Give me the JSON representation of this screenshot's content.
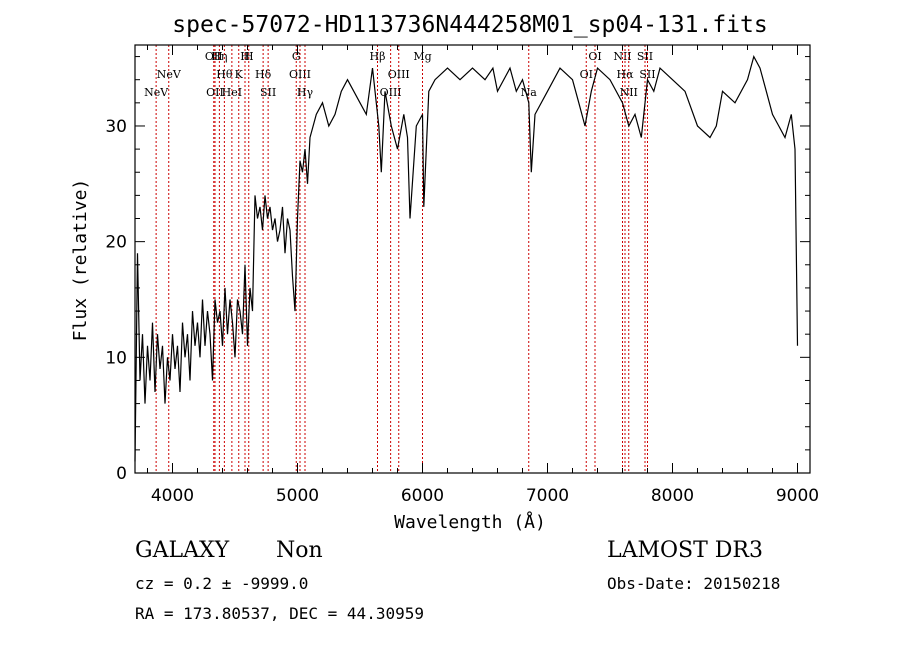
{
  "chart_data": {
    "type": "line",
    "title": "spec-57072-HD113736N444258M01_sp04-131.fits",
    "xlabel": "Wavelength (Å)",
    "ylabel": "Flux (relative)",
    "xlim": [
      3700,
      9100
    ],
    "ylim": [
      0,
      37
    ],
    "xticks": [
      4000,
      5000,
      6000,
      7000,
      8000,
      9000
    ],
    "yticks": [
      0,
      10,
      20,
      30
    ],
    "line_color": "#000000",
    "marker_color": "#cc0000",
    "series": [
      {
        "x": [
          3700,
          3720,
          3740,
          3760,
          3780,
          3800,
          3820,
          3840,
          3860,
          3880,
          3900,
          3920,
          3940,
          3960,
          3980,
          4000,
          4020,
          4040,
          4060,
          4080,
          4100,
          4120,
          4140,
          4160,
          4180,
          4200,
          4220,
          4240,
          4260,
          4280,
          4300,
          4320,
          4340,
          4360,
          4380,
          4400,
          4420,
          4440,
          4460,
          4480,
          4500,
          4520,
          4540,
          4560,
          4580,
          4600,
          4620,
          4640,
          4660,
          4680,
          4700,
          4720,
          4740,
          4760,
          4780,
          4800,
          4820,
          4840,
          4860,
          4880,
          4900,
          4920,
          4940,
          4960,
          4980,
          5000,
          5020,
          5040,
          5060,
          5080,
          5100,
          5150,
          5200,
          5250,
          5300,
          5350,
          5400,
          5450,
          5500,
          5550,
          5600,
          5650,
          5670,
          5700,
          5750,
          5800,
          5850,
          5880,
          5900,
          5950,
          6000,
          6010,
          6050,
          6100,
          6200,
          6300,
          6400,
          6500,
          6563,
          6600,
          6700,
          6750,
          6800,
          6850,
          6870,
          6900,
          7000,
          7100,
          7200,
          7250,
          7300,
          7350,
          7400,
          7500,
          7600,
          7650,
          7700,
          7750,
          7800,
          7850,
          7900,
          8000,
          8100,
          8200,
          8300,
          8350,
          8400,
          8500,
          8600,
          8650,
          8700,
          8750,
          8800,
          8850,
          8900,
          8950,
          8980,
          9000
        ],
        "values": [
          1,
          19,
          8,
          12,
          6,
          11,
          8,
          13,
          7,
          12,
          9,
          11,
          6,
          10,
          8,
          12,
          9,
          11,
          7,
          13,
          10,
          12,
          8,
          14,
          11,
          13,
          10,
          15,
          11,
          14,
          12,
          8,
          15,
          13,
          14,
          11,
          16,
          12,
          15,
          13,
          10,
          15,
          14,
          12,
          18,
          11,
          16,
          14,
          24,
          22,
          23,
          21,
          24,
          22,
          23,
          21,
          22,
          20,
          21,
          23,
          19,
          22,
          21,
          17,
          14,
          22,
          27,
          26,
          28,
          25,
          29,
          31,
          32,
          30,
          31,
          33,
          34,
          33,
          32,
          31,
          35,
          30,
          26,
          33,
          30,
          28,
          31,
          29,
          22,
          30,
          31,
          23,
          33,
          34,
          35,
          34,
          35,
          34,
          35,
          33,
          35,
          33,
          34,
          32,
          26,
          31,
          33,
          35,
          34,
          32,
          30,
          33,
          35,
          34,
          32,
          30,
          31,
          29,
          34,
          33,
          35,
          34,
          33,
          30,
          29,
          30,
          33,
          32,
          34,
          36,
          35,
          33,
          31,
          30,
          29,
          31,
          28,
          11
        ]
      }
    ],
    "lines": [
      {
        "x": 3869,
        "label": "NeV",
        "row": 2
      },
      {
        "x": 3970,
        "label": "NeV",
        "row": 1
      },
      {
        "x": 4330,
        "label": "OII",
        "row": 0
      },
      {
        "x": 4340,
        "label": "OII",
        "row": 2
      },
      {
        "x": 4375,
        "label": "Hη",
        "row": 0
      },
      {
        "x": 4415,
        "label": "Hθ",
        "row": 1
      },
      {
        "x": 4475,
        "label": "HeI",
        "row": 2
      },
      {
        "x": 4530,
        "label": "K",
        "row": 1
      },
      {
        "x": 4580,
        "label": "H",
        "row": 0
      },
      {
        "x": 4610,
        "label": "H",
        "row": 0
      },
      {
        "x": 4725,
        "label": "Hδ",
        "row": 1
      },
      {
        "x": 4765,
        "label": "SII",
        "row": 2
      },
      {
        "x": 4990,
        "label": "G",
        "row": 0
      },
      {
        "x": 5020,
        "label": "OIII",
        "row": 1
      },
      {
        "x": 5060,
        "label": "Hγ",
        "row": 2
      },
      {
        "x": 5640,
        "label": "Hβ",
        "row": 0
      },
      {
        "x": 5745,
        "label": "OIII",
        "row": 2
      },
      {
        "x": 5810,
        "label": "OIII",
        "row": 1
      },
      {
        "x": 6000,
        "label": "Mg",
        "row": 0
      },
      {
        "x": 6850,
        "label": "Na",
        "row": 2
      },
      {
        "x": 7310,
        "label": "OI",
        "row": 1
      },
      {
        "x": 7380,
        "label": "OI",
        "row": 0
      },
      {
        "x": 7600,
        "label": "NII",
        "row": 0
      },
      {
        "x": 7620,
        "label": "Hα",
        "row": 1
      },
      {
        "x": 7650,
        "label": "NII",
        "row": 2
      },
      {
        "x": 7780,
        "label": "SII",
        "row": 0
      },
      {
        "x": 7800,
        "label": "SII",
        "row": 1
      }
    ]
  },
  "info": {
    "obj_class": "GALAXY",
    "obj_subclass": "Non",
    "survey": "LAMOST DR3",
    "cz": "cz = 0.2 ± -9999.0",
    "obs_date": "Obs-Date: 20150218",
    "radec": "RA = 173.80537, DEC =  44.30959"
  }
}
